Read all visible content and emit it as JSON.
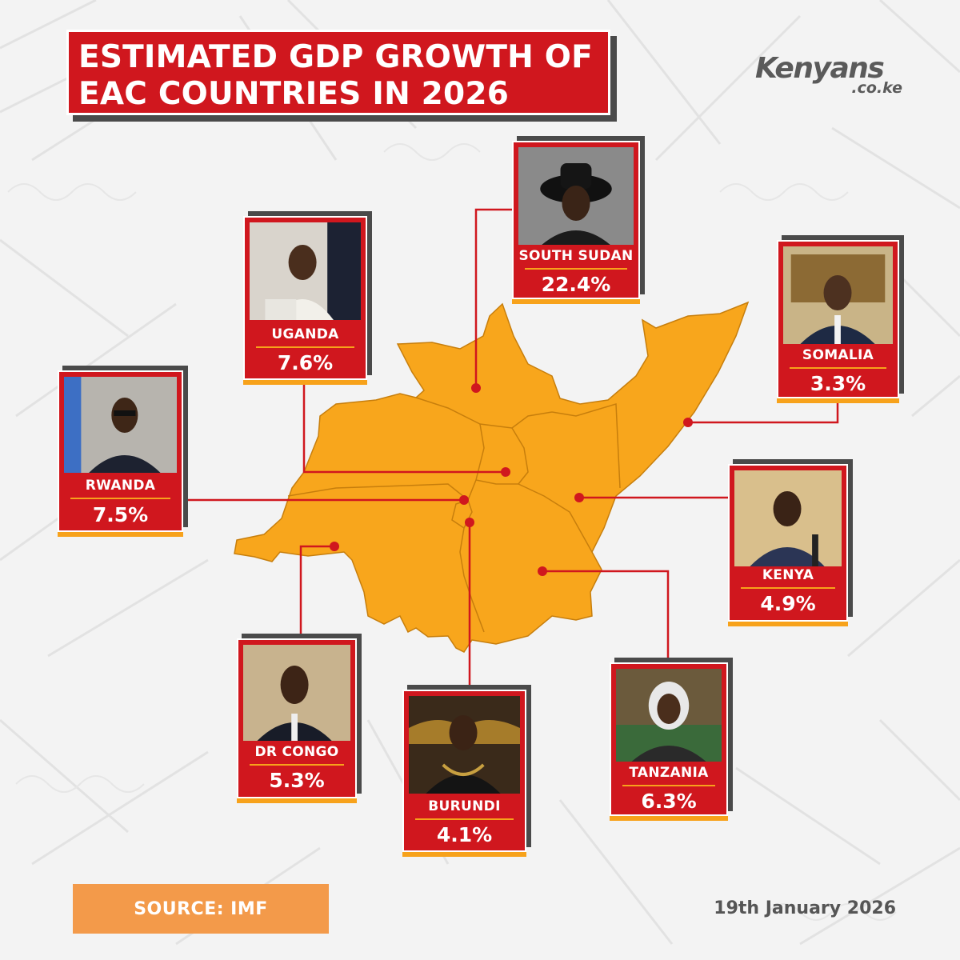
{
  "title": {
    "line1": "ESTIMATED GDP GROWTH OF",
    "line2": "EAC COUNTRIES IN 2026"
  },
  "logo": {
    "main": "Kenyans",
    "sub": ".co.ke"
  },
  "colors": {
    "accent_red": "#d0171e",
    "map_fill": "#f8a61c",
    "highlight_orange": "#f7a21b",
    "source_orange": "#f39a4a",
    "shadow_gray": "#4a4a4a"
  },
  "countries": [
    {
      "name": "SOUTH SUDAN",
      "value": "22.4%",
      "growth": 22.4,
      "photo": "leader-portrait-cowboy-hat"
    },
    {
      "name": "UGANDA",
      "value": "7.6%",
      "growth": 7.6,
      "photo": "leader-portrait-podium"
    },
    {
      "name": "SOMALIA",
      "value": "3.3%",
      "growth": 3.3,
      "photo": "leader-portrait-suit"
    },
    {
      "name": "RWANDA",
      "value": "7.5%",
      "growth": 7.5,
      "photo": "leader-portrait-glasses"
    },
    {
      "name": "KENYA",
      "value": "4.9%",
      "growth": 4.9,
      "photo": "leader-portrait-podium"
    },
    {
      "name": "DR CONGO",
      "value": "5.3%",
      "growth": 5.3,
      "photo": "leader-portrait-suit"
    },
    {
      "name": "BURUNDI",
      "value": "4.1%",
      "growth": 4.1,
      "photo": "leader-portrait-regalia"
    },
    {
      "name": "TANZANIA",
      "value": "6.3%",
      "growth": 6.3,
      "photo": "leader-portrait-headscarf"
    }
  ],
  "source": "SOURCE: IMF",
  "date": "19th January 2026"
}
